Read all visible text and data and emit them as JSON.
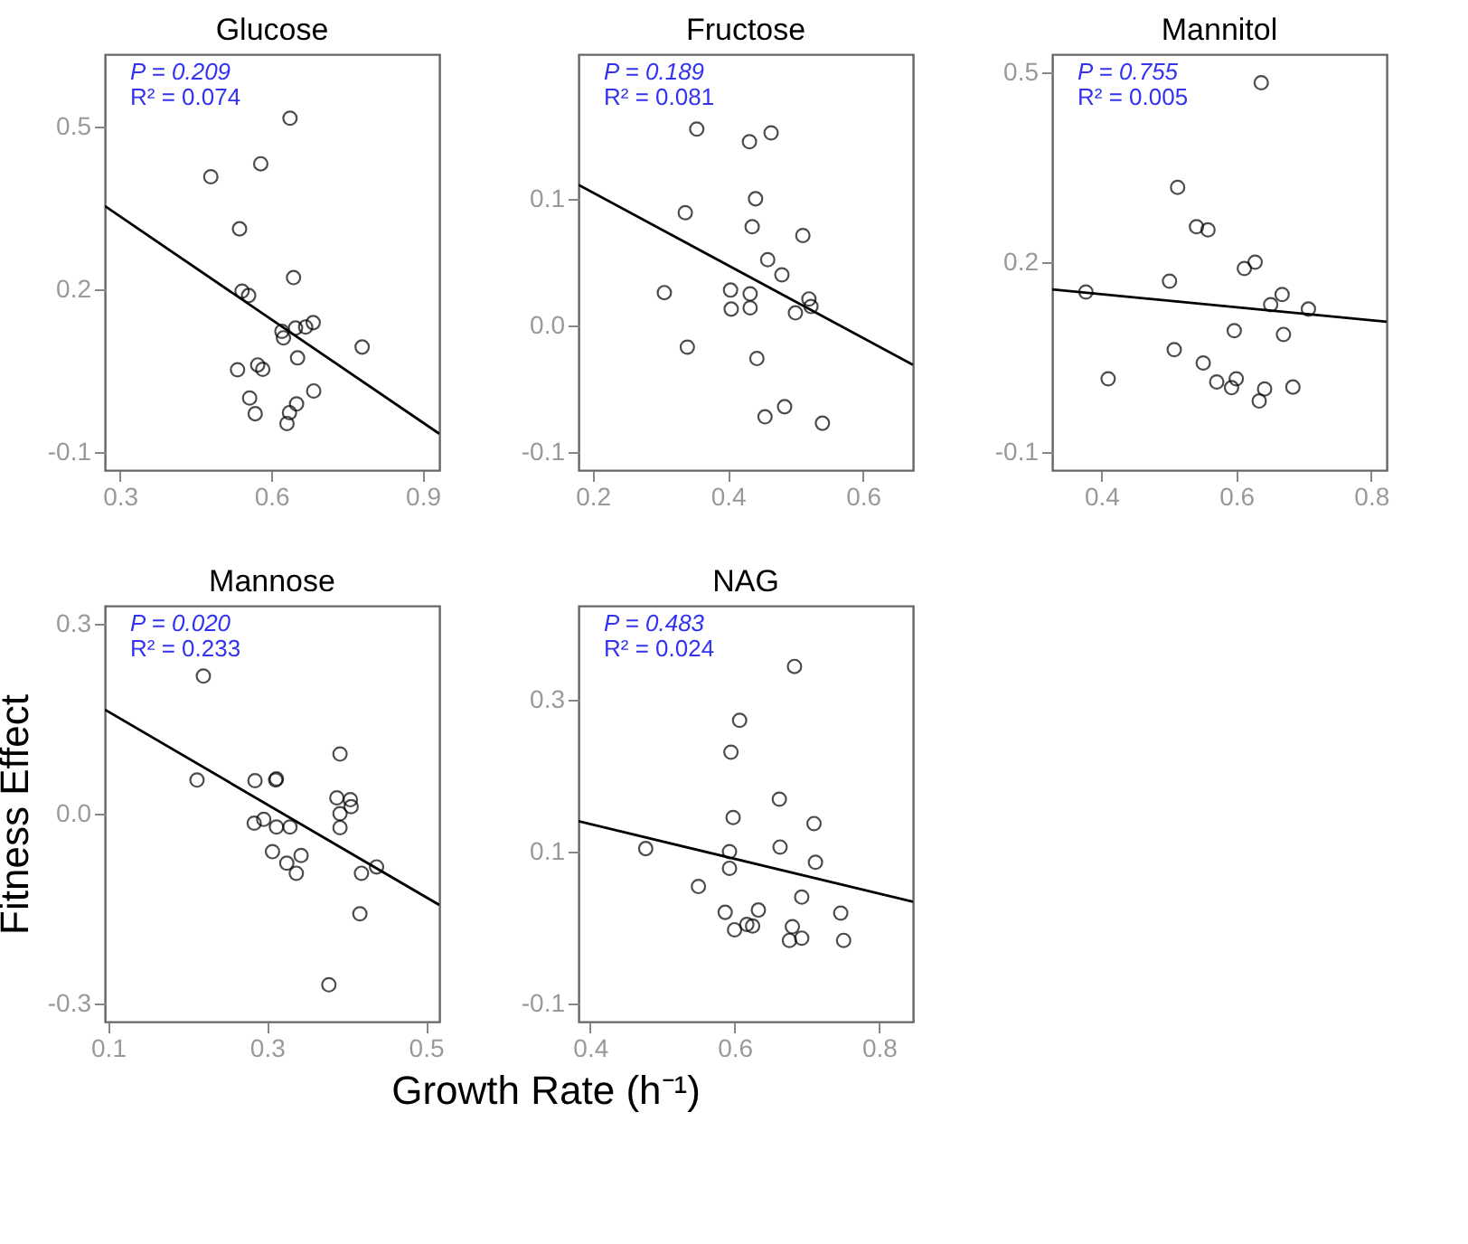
{
  "chart_data": [
    {
      "type": "scatter",
      "title": "Glucose",
      "xlim": [
        0.27,
        0.933
      ],
      "xticks": [
        0.3,
        0.6,
        0.9
      ],
      "ylim": [
        -0.133,
        0.634
      ],
      "yticks": [
        -0.1,
        0.2,
        0.5
      ],
      "annotations": [
        "P =  0.209",
        "R² = 0.074"
      ],
      "series": [
        {
          "type": "scatter",
          "marker": "circle",
          "color": "#000000",
          "x": [
            0.637,
            0.579,
            0.48,
            0.537,
            0.644,
            0.542,
            0.555,
            0.621,
            0.624,
            0.648,
            0.668,
            0.683,
            0.78,
            0.652,
            0.533,
            0.573,
            0.583,
            0.557,
            0.568,
            0.684,
            0.65,
            0.636,
            0.631
          ],
          "values": [
            0.516,
            0.432,
            0.408,
            0.312,
            0.222,
            0.197,
            0.189,
            0.123,
            0.111,
            0.129,
            0.131,
            0.139,
            0.094,
            0.074,
            0.052,
            0.061,
            0.053,
            0.0,
            -0.029,
            0.013,
            -0.011,
            -0.027,
            -0.047
          ]
        },
        {
          "type": "line",
          "color": "#000000",
          "x": [
            0.27,
            0.933
          ],
          "values": [
            0.354,
            -0.066
          ]
        }
      ]
    },
    {
      "type": "scatter",
      "title": "Fructose",
      "xlim": [
        0.179,
        0.674
      ],
      "xticks": [
        0.2,
        0.4,
        0.6
      ],
      "ylim": [
        -0.114,
        0.214
      ],
      "yticks": [
        -0.1,
        {
          "value": 0,
          "label": "0.0"
        },
        0.1
      ],
      "annotations": [
        "P =  0.189",
        "R² = 0.081"
      ],
      "series": [
        {
          "type": "scatter",
          "marker": "circle",
          "color": "#000000",
          "x": [
            0.354,
            0.464,
            0.432,
            0.441,
            0.337,
            0.436,
            0.511,
            0.459,
            0.48,
            0.306,
            0.404,
            0.433,
            0.52,
            0.523,
            0.405,
            0.433,
            0.5,
            0.34,
            0.443,
            0.484,
            0.455,
            0.54
          ],
          "values": [
            0.155,
            0.152,
            0.145,
            0.1,
            0.089,
            0.078,
            0.071,
            0.052,
            0.04,
            0.026,
            0.028,
            0.025,
            0.021,
            0.015,
            0.013,
            0.014,
            0.01,
            -0.017,
            -0.026,
            -0.064,
            -0.072,
            -0.077
          ]
        },
        {
          "type": "line",
          "color": "#000000",
          "x": [
            0.179,
            0.674
          ],
          "values": [
            0.111,
            -0.031
          ]
        }
      ]
    },
    {
      "type": "scatter",
      "title": "Mannitol",
      "xlim": [
        0.327,
        0.823
      ],
      "xticks": [
        0.4,
        0.6,
        0.8
      ],
      "ylim": [
        -0.128,
        0.528
      ],
      "yticks": [
        -0.1,
        0.2,
        0.5
      ],
      "annotations": [
        "P =  0.755",
        "R² = 0.005"
      ],
      "series": [
        {
          "type": "scatter",
          "marker": "circle",
          "color": "#000000",
          "x": [
            0.637,
            0.513,
            0.541,
            0.558,
            0.628,
            0.612,
            0.501,
            0.377,
            0.668,
            0.651,
            0.707,
            0.597,
            0.67,
            0.508,
            0.551,
            0.41,
            0.571,
            0.6,
            0.593,
            0.642,
            0.634,
            0.684
          ],
          "values": [
            0.483,
            0.318,
            0.256,
            0.251,
            0.2,
            0.19,
            0.17,
            0.153,
            0.149,
            0.133,
            0.126,
            0.092,
            0.086,
            0.062,
            0.041,
            0.016,
            0.011,
            0.016,
            0.002,
            0.0,
            -0.019,
            0.003
          ]
        },
        {
          "type": "line",
          "color": "#000000",
          "x": [
            0.327,
            0.823
          ],
          "values": [
            0.157,
            0.106
          ]
        }
      ]
    },
    {
      "type": "scatter",
      "title": "Mannose",
      "xlabel": "Growth Rate (h⁻¹)",
      "ylabel": "Fitness Effect",
      "xlim": [
        0.096,
        0.517
      ],
      "xticks": [
        0.1,
        0.3,
        0.5
      ],
      "ylim": [
        -0.328,
        0.328
      ],
      "yticks": [
        -0.3,
        {
          "value": 0,
          "label": "0.0"
        },
        0.3
      ],
      "annotations": [
        "P =  0.020",
        "R² = 0.233"
      ],
      "series": [
        {
          "type": "scatter",
          "marker": "circle",
          "color": "#000000",
          "x": [
            0.22,
            0.212,
            0.285,
            0.312,
            0.311,
            0.392,
            0.388,
            0.405,
            0.406,
            0.392,
            0.392,
            0.284,
            0.296,
            0.312,
            0.329,
            0.307,
            0.325,
            0.343,
            0.337,
            0.419,
            0.438,
            0.417,
            0.378
          ],
          "values": [
            0.217,
            0.053,
            0.052,
            0.055,
            0.053,
            0.094,
            0.025,
            0.022,
            0.011,
            0.0,
            -0.022,
            -0.015,
            -0.009,
            -0.021,
            -0.021,
            -0.06,
            -0.078,
            -0.066,
            -0.094,
            -0.094,
            -0.084,
            -0.158,
            -0.27
          ]
        },
        {
          "type": "line",
          "color": "#000000",
          "x": [
            0.096,
            0.517
          ],
          "values": [
            0.164,
            -0.144
          ]
        }
      ]
    },
    {
      "type": "scatter",
      "title": "NAG",
      "xlim": [
        0.384,
        0.847
      ],
      "xticks": [
        0.4,
        0.6,
        0.8
      ],
      "ylim": [
        -0.124,
        0.424
      ],
      "yticks": [
        -0.1,
        0.1,
        0.3
      ],
      "annotations": [
        "P =  0.483",
        "R² = 0.024"
      ],
      "series": [
        {
          "type": "scatter",
          "marker": "circle",
          "color": "#000000",
          "x": [
            0.683,
            0.607,
            0.595,
            0.662,
            0.598,
            0.71,
            0.477,
            0.593,
            0.663,
            0.593,
            0.712,
            0.55,
            0.693,
            0.587,
            0.633,
            0.747,
            0.6,
            0.617,
            0.625,
            0.68,
            0.676,
            0.693,
            0.751
          ],
          "values": [
            0.344,
            0.273,
            0.231,
            0.169,
            0.145,
            0.137,
            0.104,
            0.1,
            0.106,
            0.078,
            0.086,
            0.054,
            0.04,
            0.02,
            0.023,
            0.019,
            -0.003,
            0.004,
            0.002,
            0.001,
            -0.017,
            -0.014,
            -0.017
          ]
        },
        {
          "type": "line",
          "color": "#000000",
          "x": [
            0.384,
            0.847
          ],
          "values": [
            0.14,
            0.034
          ]
        }
      ]
    }
  ]
}
